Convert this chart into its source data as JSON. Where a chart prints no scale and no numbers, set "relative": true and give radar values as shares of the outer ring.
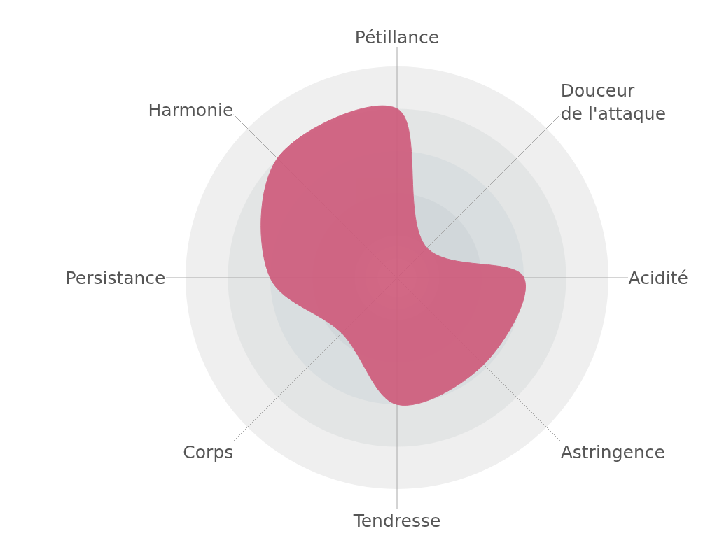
{
  "chart_data": {
    "type": "radar",
    "relative": true,
    "categories": [
      "Pétillance",
      "Douceur de l'attaque",
      "Acidité",
      "Astringence",
      "Tendresse",
      "Corps",
      "Persistance",
      "Harmonie"
    ],
    "series": [
      {
        "color": "#cf5c7c",
        "values": [
          0.8,
          0.2,
          0.6,
          0.58,
          0.6,
          0.37,
          0.6,
          0.8
        ]
      }
    ]
  }
}
